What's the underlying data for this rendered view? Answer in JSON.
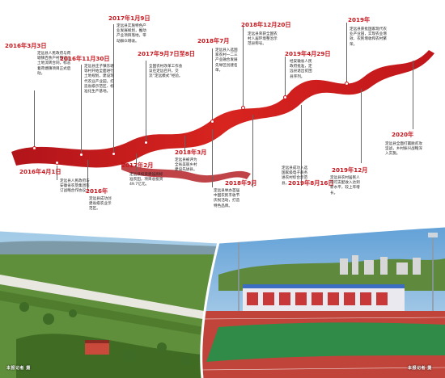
{
  "colors": {
    "accent": "#c8161d",
    "text": "#222222",
    "background": "#ffffff"
  },
  "timeline": [
    {
      "date": "2016年3月3日",
      "text": "定远县人民政府与荷塘镇百余户村民订立土地流转合同，标志着荷塘镇项目正式启动。"
    },
    {
      "date": "2016年11月30日",
      "text": "定远县庄子镇东塘等村开始全面进行土地规划，建设现代农业产业园，打造省级示范区、标准化生产基地。"
    },
    {
      "date": "2017年1月9日",
      "text": "定远县实施特色产业发展规划，推动产业项目落地，带动群众增收。"
    },
    {
      "date": "2017年9月7日至8日",
      "text": "全国农村改革工作会议在定远召开，交流“定远模式”经验。"
    },
    {
      "date": "2018年7月",
      "text": "定远县入选国家农村一二三产业融合发展先导区创建名单。"
    },
    {
      "date": "2018年12月20日",
      "text": "定远县荣获全国农村人居环境整治示范县称号。"
    },
    {
      "date": "2019年4月29日",
      "text": "经安徽省人民政府批准，定远县退出贫困县序列。"
    },
    {
      "date": "2019年",
      "text": "定远县获批国家现代农业产业园，实现农业增效、农民增收和农村繁荣。"
    },
    {
      "date": "2016年4月1日",
      "text": "定远县人民政府与安徽省农垦集团签订战略合作协议。"
    },
    {
      "date": "2016年",
      "text": "定远县成功创建省级农业示范区。"
    },
    {
      "date": "2017年2月",
      "text": "定远县投资建设高标准农田，项目总投资49.7亿元。"
    },
    {
      "date": "2018年3月",
      "text": "定远县被评为全省美丽乡村建设先进县。"
    },
    {
      "date": "2018年9月",
      "text": "定远县举办首届中国农民丰收节庆祝活动，打造特色品牌。"
    },
    {
      "date": "2019年8月16日",
      "text": "定远县成功入选国家级电子商务进农村综合示范县。"
    },
    {
      "date": "2019年12月",
      "text": "定远县农村居民人均可支配收入达到新水平，较上年增长。"
    },
    {
      "date": "2020年",
      "text": "定远县全面打赢脱贫攻坚战，乡村振兴战略深入实施。"
    }
  ],
  "photos": [
    {
      "name": "farmland-photo",
      "credit": "本报记者 摄"
    },
    {
      "name": "stadium-photo",
      "credit": "本报记者 摄"
    }
  ]
}
